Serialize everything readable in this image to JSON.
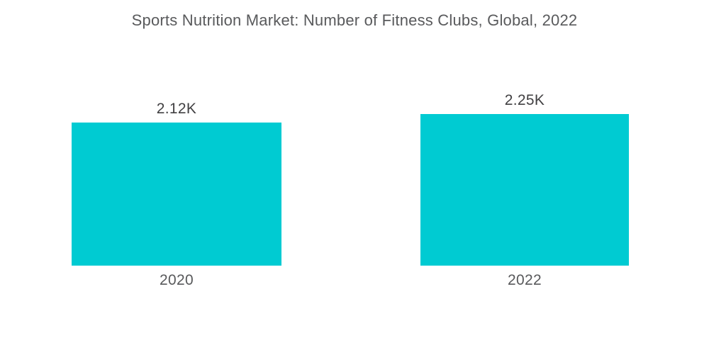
{
  "chart_data": {
    "type": "bar",
    "title": "Sports Nutrition Market: Number of Fitness Clubs, Global, 2022",
    "categories": [
      "2020",
      "2022"
    ],
    "values": [
      2120,
      2250
    ],
    "value_labels": [
      "2.12K",
      "2.25K"
    ],
    "xlabel": "",
    "ylabel": "",
    "ylim": [
      0,
      2250
    ],
    "grid": false,
    "legend": false,
    "colors": {
      "bar_fill": "#00cbd2",
      "title_text": "#595a5c",
      "value_label_text": "#414042",
      "category_label_text": "#58595b",
      "background": "#ffffff"
    }
  }
}
